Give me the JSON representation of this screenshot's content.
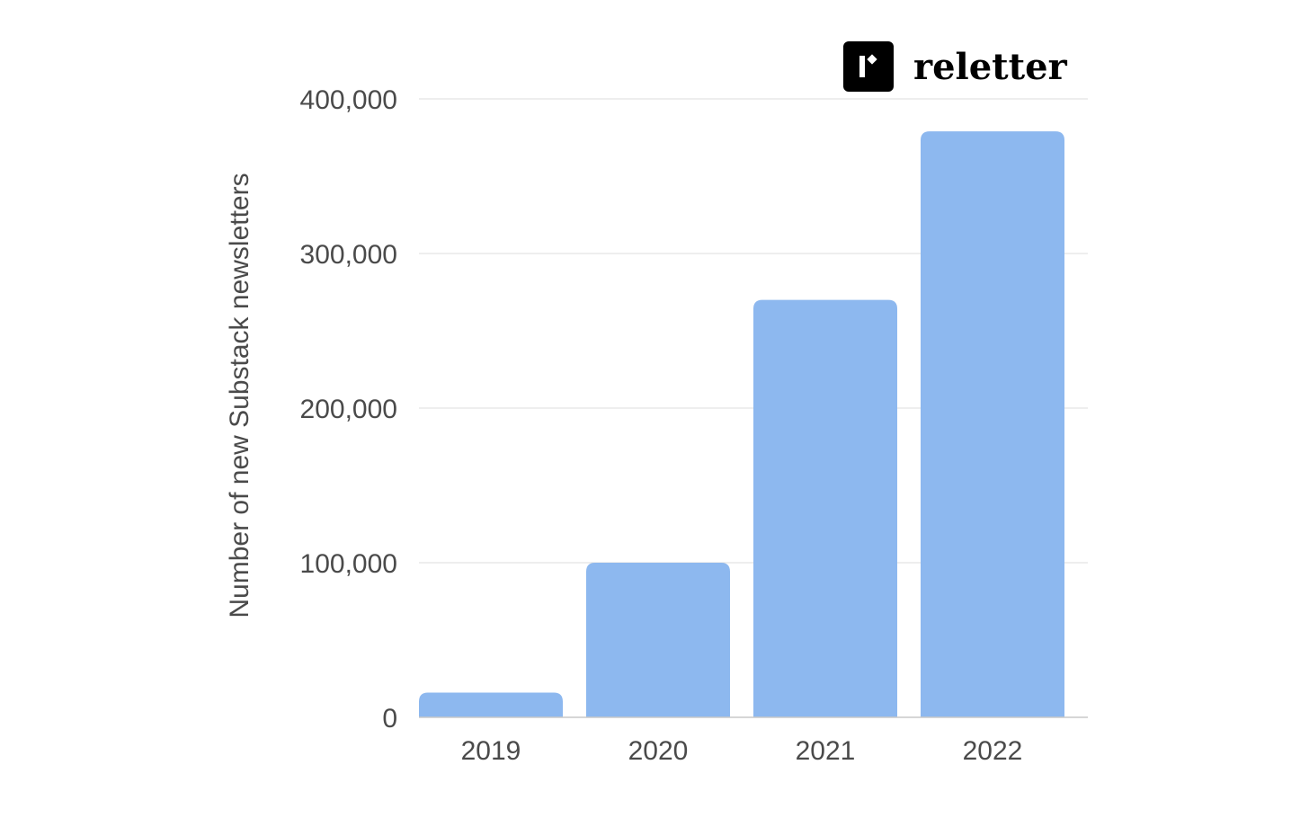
{
  "chart_data": {
    "type": "bar",
    "categories": [
      "2019",
      "2020",
      "2021",
      "2022"
    ],
    "values": [
      16000,
      100000,
      270000,
      379000
    ],
    "ylabel": "Number of new Substack newsletters",
    "xlabel": "",
    "ylim": [
      0,
      400000
    ],
    "yticks": [
      0,
      100000,
      200000,
      300000,
      400000
    ],
    "ytick_labels": [
      "0",
      "100,000",
      "200,000",
      "300,000",
      "400,000"
    ],
    "grid": true,
    "bar_color": "#8db8ef",
    "grid_color": "#dcdcdc",
    "axis_color": "#c8c8c8"
  },
  "brand": {
    "name": "reletter",
    "logo_icon": "reletter-logo-icon"
  }
}
